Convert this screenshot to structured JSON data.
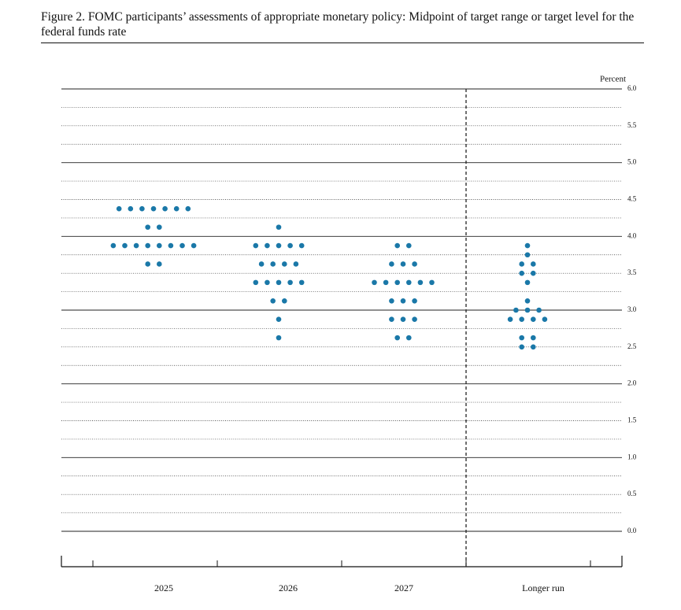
{
  "chart_data": {
    "type": "dot",
    "title": "Figure 2.  FOMC participants’ assessments of appropriate monetary policy:  Midpoint of target range or target level for the federal funds rate",
    "y_axis_label": "Percent",
    "color": "#1a78a8",
    "categories": [
      "2025",
      "2026",
      "2027",
      "Longer run"
    ],
    "values": [
      [
        4.375,
        4.375,
        4.375,
        4.375,
        4.375,
        4.375,
        4.375,
        4.125,
        4.125,
        3.875,
        3.875,
        3.875,
        3.875,
        3.875,
        3.875,
        3.875,
        3.875,
        3.625,
        3.625
      ],
      [
        4.125,
        3.875,
        3.875,
        3.875,
        3.875,
        3.875,
        3.625,
        3.625,
        3.625,
        3.625,
        3.375,
        3.375,
        3.375,
        3.375,
        3.375,
        3.125,
        3.125,
        2.875,
        2.625
      ],
      [
        3.875,
        3.875,
        3.625,
        3.625,
        3.625,
        3.375,
        3.375,
        3.375,
        3.375,
        3.375,
        3.375,
        3.125,
        3.125,
        3.125,
        2.875,
        2.875,
        2.875,
        2.625,
        2.625
      ],
      [
        3.875,
        3.75,
        3.625,
        3.625,
        3.5,
        3.5,
        3.375,
        3.125,
        3.0,
        3.0,
        3.0,
        2.875,
        2.875,
        2.875,
        2.875,
        2.625,
        2.625,
        2.5,
        2.5
      ]
    ],
    "ylim": [
      0,
      6
    ],
    "yticks": [
      {
        "value": 0,
        "label": "0.0"
      },
      {
        "value": 0.5,
        "label": "0.5"
      },
      {
        "value": 1,
        "label": "1.0"
      },
      {
        "value": 1.5,
        "label": "1.5"
      },
      {
        "value": 2,
        "label": "2.0"
      },
      {
        "value": 2.5,
        "label": "2.5"
      },
      {
        "value": 3,
        "label": "3.0"
      },
      {
        "value": 3.5,
        "label": "3.5"
      },
      {
        "value": 4,
        "label": "4.0"
      },
      {
        "value": 4.5,
        "label": "4.5"
      },
      {
        "value": 5,
        "label": "5.0"
      },
      {
        "value": 5.5,
        "label": "5.5"
      },
      {
        "value": 6,
        "label": "6.0"
      }
    ],
    "minor_yticks": [
      0.25,
      0.75,
      1.25,
      1.75,
      2.25,
      2.75,
      3.25,
      3.75,
      4.25,
      4.75,
      5.25,
      5.75
    ],
    "grid": true
  }
}
